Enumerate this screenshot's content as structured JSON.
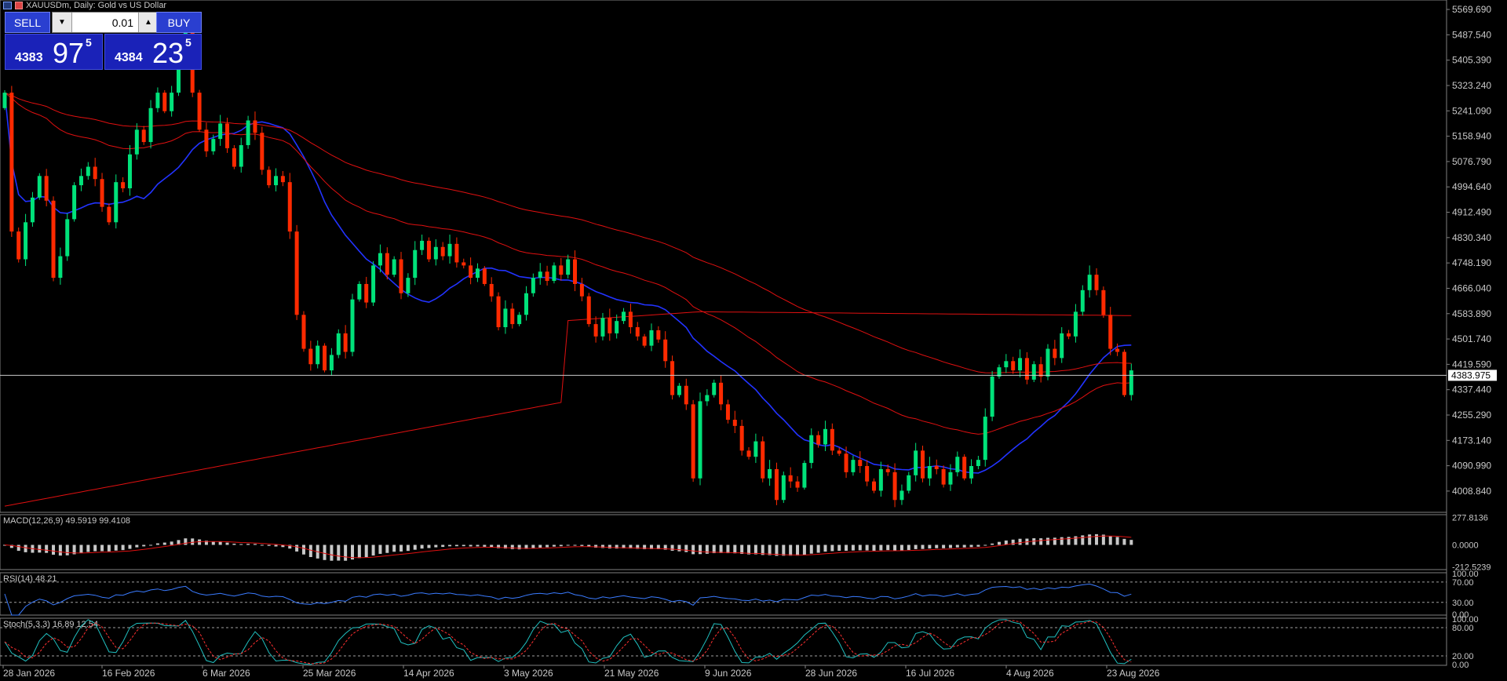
{
  "header": {
    "title": "XAUUSDm, Daily:  Gold vs US Dollar"
  },
  "trade_panel": {
    "sell_label": "SELL",
    "buy_label": "BUY",
    "volume": "0.01",
    "down_arrow": "▼",
    "up_arrow": "▲",
    "sell_price": {
      "small": "4383",
      "big": "97",
      "sup": "5"
    },
    "buy_price": {
      "small": "4384",
      "big": "23",
      "sup": "5"
    }
  },
  "colors": {
    "bull": "#00e27a",
    "bear": "#ff2a00",
    "ma_fast": "#2233ff",
    "ma_slow": "#e01010",
    "buy_panel": "#1a22b8",
    "grid": "#808080"
  },
  "chart_data": {
    "type": "candlestick",
    "symbol": "XAUUSDm",
    "timeframe": "Daily",
    "price_axis": [
      "5569.690",
      "5487.540",
      "5405.390",
      "5323.240",
      "5241.090",
      "5158.940",
      "5076.790",
      "4994.640",
      "4912.490",
      "4830.340",
      "4748.190",
      "4666.040",
      "4583.890",
      "4501.740",
      "4419.590",
      "4337.440",
      "4255.290",
      "4173.140",
      "4090.990",
      "4008.840"
    ],
    "ylim": [
      3940,
      5580
    ],
    "current_price": "4383.975",
    "date_axis": [
      "28 Jan 2026",
      "16 Feb 2026",
      "6 Mar 2026",
      "25 Mar 2026",
      "14 Apr 2026",
      "3 May 2026",
      "21 May 2026",
      "9 Jun 2026",
      "28 Jun 2026",
      "16 Jul 2026",
      "4 Aug 2026",
      "23 Aug 2026"
    ],
    "closes": [
      5300,
      4850,
      4760,
      4880,
      4960,
      5030,
      4950,
      4700,
      4770,
      4890,
      5000,
      5030,
      5060,
      5020,
      4930,
      4880,
      5010,
      4990,
      5100,
      5180,
      5140,
      5250,
      5300,
      5240,
      5300,
      5420,
      5500,
      5300,
      5180,
      5110,
      5150,
      5200,
      5120,
      5060,
      5130,
      5210,
      5170,
      5050,
      5000,
      5030,
      5010,
      4850,
      4580,
      4470,
      4420,
      4480,
      4400,
      4450,
      4520,
      4460,
      4630,
      4680,
      4620,
      4740,
      4780,
      4710,
      4760,
      4650,
      4700,
      4790,
      4820,
      4760,
      4800,
      4770,
      4810,
      4750,
      4740,
      4700,
      4730,
      4680,
      4640,
      4540,
      4600,
      4550,
      4580,
      4650,
      4700,
      4720,
      4690,
      4740,
      4710,
      4760,
      4680,
      4640,
      4550,
      4510,
      4570,
      4520,
      4560,
      4590,
      4540,
      4510,
      4480,
      4530,
      4500,
      4430,
      4320,
      4350,
      4290,
      4050,
      4300,
      4320,
      4360,
      4290,
      4240,
      4220,
      4140,
      4120,
      4170,
      4050,
      4080,
      3980,
      4060,
      4040,
      4020,
      4100,
      4190,
      4160,
      4210,
      4140,
      4130,
      4070,
      4110,
      4090,
      4040,
      4010,
      4080,
      4070,
      3980,
      4010,
      4060,
      4140,
      4050,
      4090,
      4080,
      4030,
      4070,
      4120,
      4050,
      4090,
      4110,
      4250,
      4380,
      4410,
      4430,
      4400,
      4440,
      4370,
      4420,
      4380,
      4470,
      4440,
      4520,
      4510,
      4590,
      4660,
      4710,
      4660,
      4580,
      4470,
      4460,
      4320,
      4400
    ],
    "ma_periods": [
      20,
      50,
      100,
      200
    ],
    "ma_last_values": [
      4490,
      4320,
      4262,
      4584
    ],
    "indicators": [
      {
        "name": "MACD(12,26,9) 49.5919 99.4108",
        "levels": [
          "277.8136",
          "0.0000",
          "-212.5239"
        ]
      },
      {
        "name": "RSI(14) 48.21",
        "levels": [
          "100.00",
          "70.00",
          "30.00",
          "0.00"
        ]
      },
      {
        "name": "Stoch(5,3,3) 16.89 12.54",
        "levels": [
          "100.00",
          "80.00",
          "20.00",
          "0.00"
        ]
      }
    ]
  }
}
